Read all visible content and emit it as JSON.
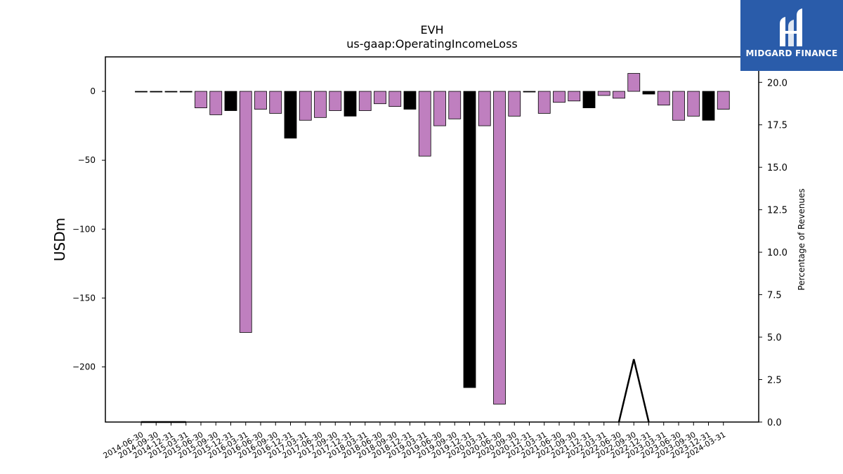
{
  "logo": {
    "text": "MIDGARD FINANCE",
    "icon": "midgard-logo-icon",
    "color": "#2a5caa"
  },
  "chart_data": {
    "type": "bar",
    "title": "EVH",
    "subtitle": "us-gaap:OperatingIncomeLoss",
    "ylabel": "USDm",
    "y2label": "Percentage of Revenues",
    "ylim": [
      -240,
      25
    ],
    "y2lim": [
      0,
      21.5
    ],
    "yticks": [
      0,
      -50,
      -100,
      -150,
      -200
    ],
    "y2ticks": [
      "0.0",
      "2.5",
      "5.0",
      "7.5",
      "10.0",
      "12.5",
      "15.0",
      "17.5",
      "20.0"
    ],
    "categories": [
      "2014-06-30",
      "2014-09-30",
      "2014-12-31",
      "2015-03-31",
      "2015-06-30",
      "2015-09-30",
      "2015-12-31",
      "2016-03-31",
      "2016-06-30",
      "2016-09-30",
      "2016-12-31",
      "2017-03-31",
      "2017-06-30",
      "2017-09-30",
      "2017-12-31",
      "2018-03-31",
      "2018-06-30",
      "2018-09-30",
      "2018-12-31",
      "2019-03-31",
      "2019-06-30",
      "2019-09-30",
      "2019-12-31",
      "2020-03-31",
      "2020-06-30",
      "2020-09-30",
      "2020-12-31",
      "2021-03-31",
      "2021-06-30",
      "2021-09-30",
      "2021-12-31",
      "2022-03-31",
      "2022-06-30",
      "2022-09-30",
      "2022-12-31",
      "2023-03-31",
      "2023-06-30",
      "2023-09-30",
      "2023-12-31",
      "2024-03-31"
    ],
    "values": [
      -0.3,
      -0.3,
      -0.3,
      -0.3,
      -12,
      -17,
      -14,
      -175,
      -13,
      -16,
      -34,
      -21,
      -19,
      -14,
      -18,
      -14,
      -9,
      -11,
      -13,
      -47,
      -25,
      -20,
      -215,
      -25,
      -227,
      -18,
      -0.3,
      -16,
      -8,
      -7,
      -12,
      -3,
      -5,
      13,
      -2,
      -10,
      -21,
      -18,
      -21,
      -13
    ],
    "bar_colors": [
      "#000000",
      "#000000",
      "#000000",
      "#000000",
      "#bf7fbf",
      "#bf7fbf",
      "#000000",
      "#bf7fbf",
      "#bf7fbf",
      "#bf7fbf",
      "#000000",
      "#bf7fbf",
      "#bf7fbf",
      "#bf7fbf",
      "#000000",
      "#bf7fbf",
      "#bf7fbf",
      "#bf7fbf",
      "#000000",
      "#bf7fbf",
      "#bf7fbf",
      "#bf7fbf",
      "#000000",
      "#bf7fbf",
      "#bf7fbf",
      "#bf7fbf",
      "#000000",
      "#bf7fbf",
      "#bf7fbf",
      "#bf7fbf",
      "#000000",
      "#bf7fbf",
      "#bf7fbf",
      "#bf7fbf",
      "#000000",
      "#bf7fbf",
      "#bf7fbf",
      "#bf7fbf",
      "#000000",
      "#bf7fbf"
    ],
    "pct_line": [
      0,
      0,
      0,
      0,
      null,
      null,
      null,
      null,
      null,
      null,
      null,
      null,
      null,
      null,
      null,
      null,
      null,
      null,
      null,
      null,
      null,
      null,
      null,
      null,
      null,
      null,
      0,
      null,
      null,
      null,
      null,
      null,
      0,
      3.7,
      0,
      null,
      null,
      null,
      null,
      null
    ],
    "grid": false,
    "legend": "none"
  }
}
